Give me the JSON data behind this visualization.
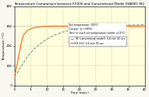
{
  "title": "Temperature Comparison between FX300 and Conventional Model (HAKKO 96)",
  "xlabel": "Time (min.)",
  "ylabel": "Temperature (°C)",
  "ylim": [
    0,
    400
  ],
  "xlim": [
    0,
    40
  ],
  "yticks": [
    0,
    100,
    200,
    300,
    400
  ],
  "xticks": [
    0,
    5,
    10,
    15,
    20,
    25,
    30,
    35,
    40
  ],
  "bg_color": "#ffffdd",
  "fig_color": "#f8f8f0",
  "annotation_lines": [
    "Set temperature: 300°C",
    "Cut-bur: 1s (+80%)",
    "Time to reach set temperature (within ±10°C)"
  ],
  "legend_96": "96 (conventional model): 3.4 min 50 sec",
  "legend_fx300": "FX-300: 2.6 min 30 sec",
  "line_96_color": "#888888",
  "line_fx300_color": "#ff5500",
  "set_temp": 300,
  "fx300_data_x": [
    0,
    0.5,
    1,
    1.5,
    2,
    2.5,
    3,
    4,
    5,
    6,
    7,
    8,
    9,
    10,
    11,
    12,
    13,
    15,
    20,
    25,
    30,
    35,
    40
  ],
  "fx300_data_y": [
    45,
    80,
    120,
    165,
    205,
    240,
    260,
    278,
    287,
    292,
    295,
    297,
    298,
    299,
    299,
    300,
    300,
    300,
    300,
    300,
    300,
    300,
    300
  ],
  "model96_data_x": [
    0,
    1,
    2,
    3,
    4,
    5,
    6,
    7,
    8,
    9,
    10,
    11,
    12,
    13,
    14,
    15,
    20,
    25,
    30,
    35,
    40
  ],
  "model96_data_y": [
    45,
    68,
    95,
    120,
    145,
    165,
    183,
    198,
    212,
    224,
    234,
    244,
    252,
    259,
    265,
    271,
    289,
    298,
    303,
    305,
    307
  ]
}
